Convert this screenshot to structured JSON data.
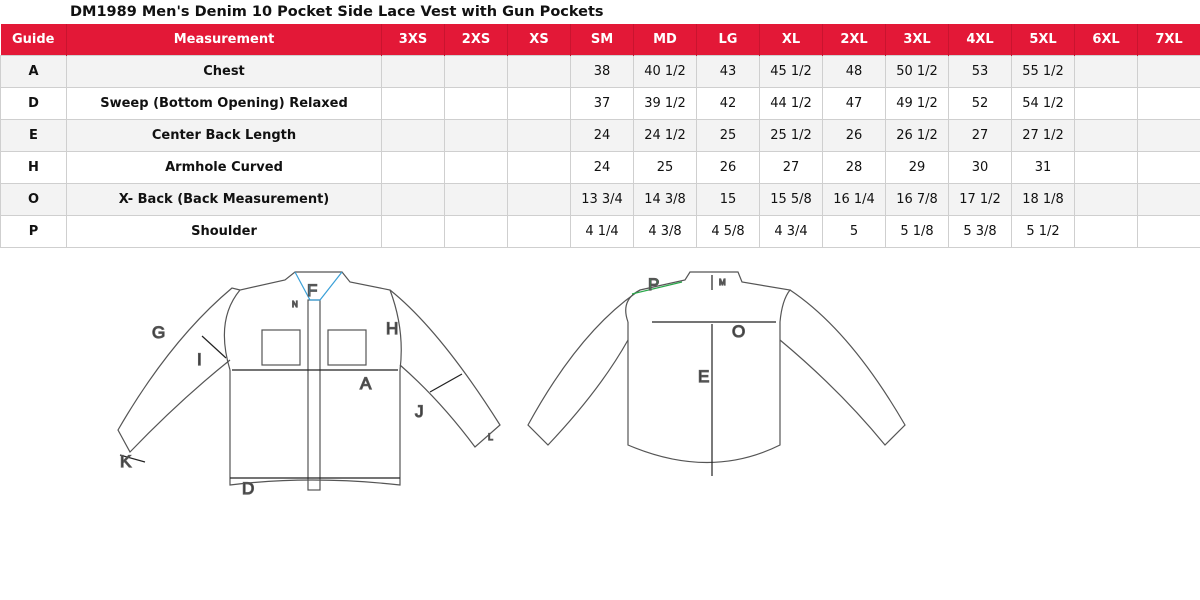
{
  "title": "DM1989 Men's Denim 10 Pocket Side Lace Vest with Gun Pockets",
  "header_color": "#e31837",
  "columns": [
    "Guide",
    "Measurement",
    "3XS",
    "2XS",
    "XS",
    "SM",
    "MD",
    "LG",
    "XL",
    "2XL",
    "3XL",
    "4XL",
    "5XL",
    "6XL",
    "7XL"
  ],
  "rows": [
    {
      "guide": "A",
      "measurement": "Chest",
      "values": [
        "",
        "",
        "",
        "38",
        "40 1/2",
        "43",
        "45 1/2",
        "48",
        "50 1/2",
        "53",
        "55 1/2",
        "",
        ""
      ]
    },
    {
      "guide": "D",
      "measurement": "Sweep (Bottom Opening)  Relaxed",
      "values": [
        "",
        "",
        "",
        "37",
        "39 1/2",
        "42",
        "44 1/2",
        "47",
        "49 1/2",
        "52",
        "54 1/2",
        "",
        ""
      ]
    },
    {
      "guide": "E",
      "measurement": "Center Back Length",
      "values": [
        "",
        "",
        "",
        "24",
        "24 1/2",
        "25",
        "25 1/2",
        "26",
        "26 1/2",
        "27",
        "27 1/2",
        "",
        ""
      ]
    },
    {
      "guide": "H",
      "measurement": "Armhole Curved",
      "values": [
        "",
        "",
        "",
        "24",
        "25",
        "26",
        "27",
        "28",
        "29",
        "30",
        "31",
        "",
        ""
      ]
    },
    {
      "guide": "O",
      "measurement": "X- Back (Back Measurement)",
      "values": [
        "",
        "",
        "",
        "13 3/4",
        "14 3/8",
        "15",
        "15 5/8",
        "16 1/4",
        "16 7/8",
        "17 1/2",
        "18 1/8",
        "",
        ""
      ]
    },
    {
      "guide": "P",
      "measurement": "Shoulder",
      "values": [
        "",
        "",
        "",
        "4 1/4",
        "4 3/8",
        "4 5/8",
        "4 3/4",
        "5",
        "5 1/8",
        "5 3/8",
        "5 1/2",
        "",
        ""
      ]
    }
  ],
  "diagram_labels": {
    "front": [
      "G",
      "I",
      "F",
      "N",
      "H",
      "A",
      "J",
      "K",
      "L",
      "D"
    ],
    "back": [
      "P",
      "M",
      "O",
      "E"
    ]
  }
}
